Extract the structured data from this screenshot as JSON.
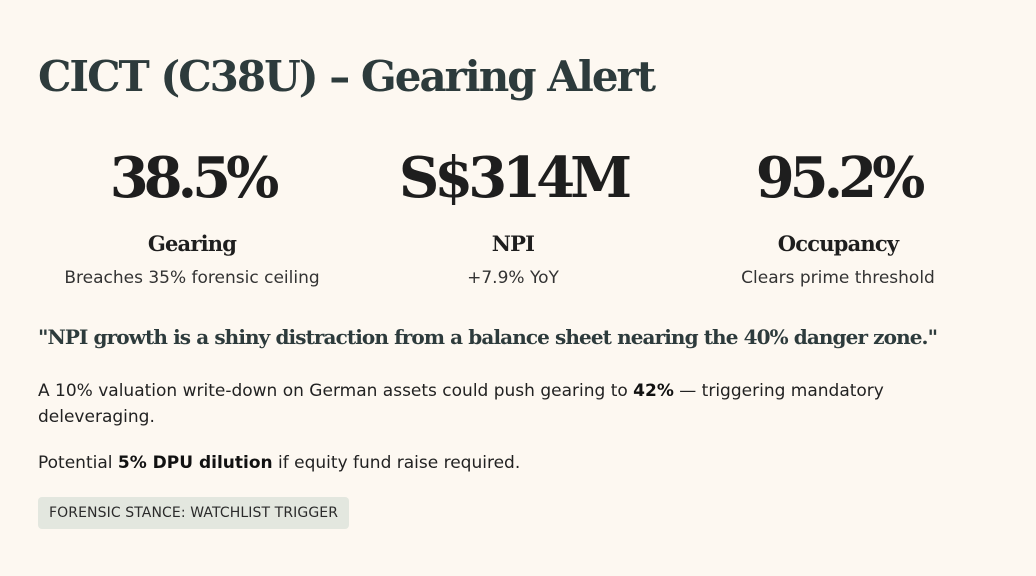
{
  "header": {
    "title": "CICT (C38U) – Gearing Alert"
  },
  "stats": [
    {
      "value": "38.5%",
      "label": "Gearing",
      "sub": "Breaches 35% forensic ceiling"
    },
    {
      "value": "S$314M",
      "label": "NPI",
      "sub": "+7.9% YoY"
    },
    {
      "value": "95.2%",
      "label": "Occupancy",
      "sub": "Clears prime threshold"
    }
  ],
  "quote": "\"NPI growth is a shiny distraction from a balance sheet nearing the 40% danger zone.\"",
  "paragraph1": {
    "before": "A 10% valuation write-down on German assets could push gearing to ",
    "bold": "42%",
    "after": " — triggering mandatory deleveraging."
  },
  "paragraph2": {
    "before": "Potential ",
    "bold": "5% DPU dilution",
    "after": " if equity fund raise required."
  },
  "badge": "FORENSIC STANCE: WATCHLIST TRIGGER",
  "colors": {
    "background": "#fdf8f1",
    "heading": "#2d3b3c",
    "badge_bg": "#e3e7df"
  }
}
